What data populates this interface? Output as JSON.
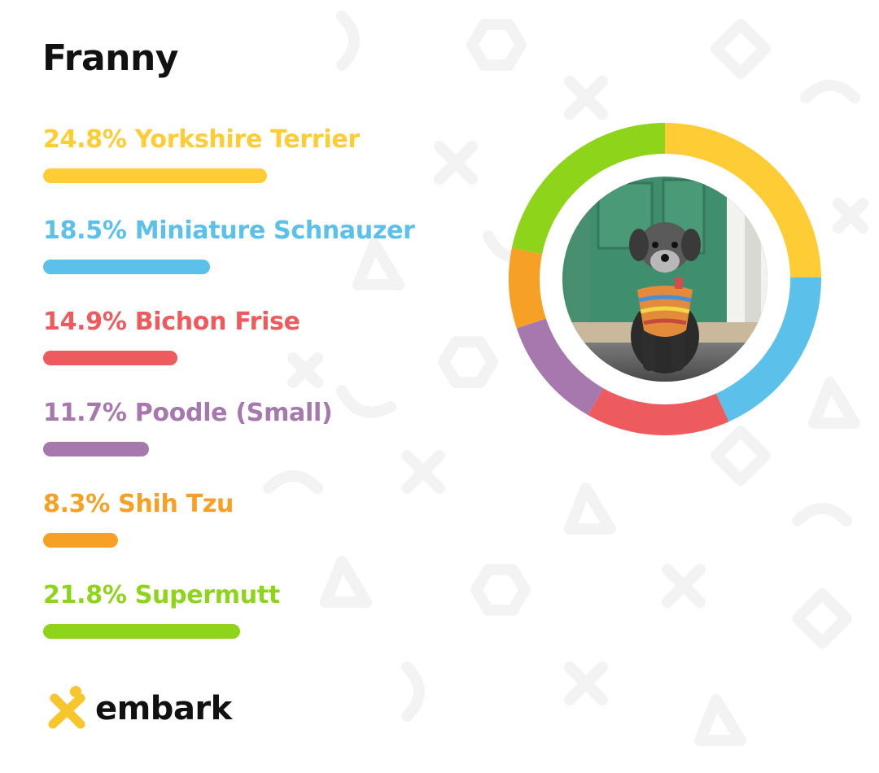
{
  "dog_name": "Franny",
  "brand": {
    "logo_text": "embark",
    "logo_icon": "embark-x-icon",
    "accent_color": "#f7c52c"
  },
  "photo": {
    "icon": "dog-photo",
    "ring_color": "#ffffff"
  },
  "chart_data": {
    "type": "pie",
    "title": "",
    "series": [
      {
        "name": "Yorkshire Terrier",
        "label": "24.8% Yorkshire Terrier",
        "value": 24.8,
        "color": "#fecc34"
      },
      {
        "name": "Miniature Schnauzer",
        "label": "18.5% Miniature Schnauzer",
        "value": 18.5,
        "color": "#5bc0ea"
      },
      {
        "name": "Bichon Frise",
        "label": "14.9% Bichon Frise",
        "value": 14.9,
        "color": "#ee5b5e"
      },
      {
        "name": "Poodle (Small)",
        "label": "11.7% Poodle (Small)",
        "value": 11.7,
        "color": "#a678ae"
      },
      {
        "name": "Shih Tzu",
        "label": "8.3% Shih Tzu",
        "value": 8.3,
        "color": "#f6a125"
      },
      {
        "name": "Supermutt",
        "label": "21.8% Supermutt",
        "value": 21.8,
        "color": "#8ed41a"
      }
    ],
    "legend": "left",
    "grid": false
  }
}
